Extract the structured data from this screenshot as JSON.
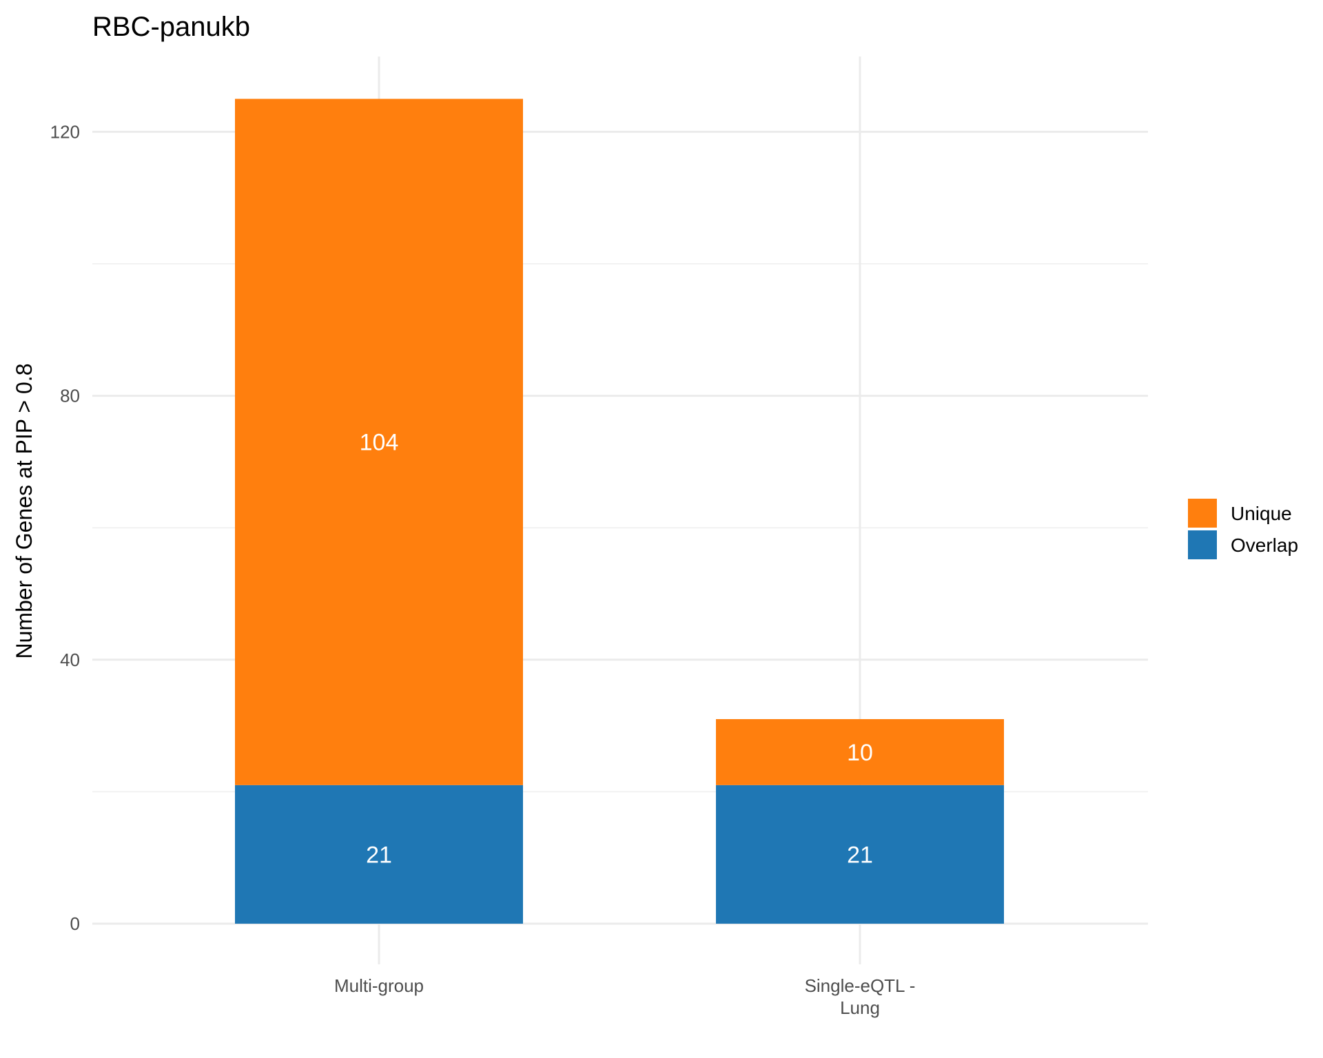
{
  "chart_data": {
    "type": "bar",
    "stacked": true,
    "title": "RBC-panukb",
    "xlabel": "",
    "ylabel": "Number of Genes at PIP > 0.8",
    "categories": [
      [
        "Multi-group"
      ],
      [
        "Single-eQTL -",
        "Lung"
      ]
    ],
    "series": [
      {
        "name": "Overlap",
        "color": "#1f77b4",
        "values": [
          21,
          21
        ]
      },
      {
        "name": "Unique",
        "color": "#ff7f0e",
        "values": [
          104,
          10
        ]
      }
    ],
    "ylim": [
      0,
      125
    ],
    "yticks": [
      0,
      40,
      80,
      120
    ],
    "grid": true,
    "legend_position": "right",
    "legend_order": [
      "Unique",
      "Overlap"
    ]
  }
}
